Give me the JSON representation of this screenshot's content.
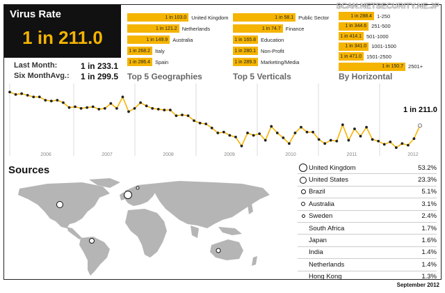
{
  "watermark": "SCAN.NETSECURITY.NE.JP",
  "virus_rate": {
    "title": "Virus Rate",
    "value": "1 in 211.0",
    "last_month_label": "Last Month:",
    "last_month_value": "1 in 233.1",
    "six_month_label": "Six MonthAvg.:",
    "six_month_value": "1 in 299.5"
  },
  "geographies": {
    "title": "Top 5 Geographies",
    "items": [
      {
        "value": "1 in 103.0",
        "label": "United Kingdom",
        "fraction": 0.98
      },
      {
        "value": "1 in 121.2",
        "label": "Netherlands",
        "fraction": 0.83
      },
      {
        "value": "1 in 149.9",
        "label": "Australia",
        "fraction": 0.68
      },
      {
        "value": "1 in 268.2",
        "label": "Italy",
        "fraction": 0.38
      },
      {
        "value": "1 in 286.4",
        "label": "Spain",
        "fraction": 0.36
      }
    ]
  },
  "verticals": {
    "title": "Top 5 Verticals",
    "items": [
      {
        "value": "1 in 58.1",
        "label": "Public Sector",
        "fraction": 0.98
      },
      {
        "value": "1 in 74.7",
        "label": "Finance",
        "fraction": 0.78
      },
      {
        "value": "1 in 165.8",
        "label": "Education",
        "fraction": 0.36
      },
      {
        "value": "1 in 280.1",
        "label": "Non-Profit",
        "fraction": 0.22
      },
      {
        "value": "1 in 289.3",
        "label": "Marketing/Media",
        "fraction": 0.22
      }
    ]
  },
  "horizontal": {
    "title": "By Horizontal",
    "items": [
      {
        "value": "1 in 288.4",
        "label": "1-250",
        "fraction": 0.52
      },
      {
        "value": "1 in 344.6",
        "label": "251-500",
        "fraction": 0.44
      },
      {
        "value": "1 in 414.1",
        "label": "501-1000",
        "fraction": 0.36
      },
      {
        "value": "1 in 341.0",
        "label": "1001-1500",
        "fraction": 0.44
      },
      {
        "value": "1 in 471.0",
        "label": "1501-2500",
        "fraction": 0.32
      },
      {
        "value": "1 in 150.7",
        "label": "2501+",
        "fraction": 0.98
      }
    ]
  },
  "chart_data": {
    "type": "line",
    "current_label": "1 in 211.0",
    "x_ticks": [
      "2006",
      "2007",
      "2008",
      "2009",
      "2010",
      "2011",
      "2012"
    ],
    "color": "#f5b400",
    "values": [
      127,
      130,
      129,
      131,
      133,
      133,
      137,
      138,
      137,
      140,
      146,
      145,
      147,
      146,
      145,
      148,
      147,
      141,
      147,
      133,
      151,
      147,
      140,
      144,
      147,
      148,
      149,
      149,
      156,
      155,
      156,
      162,
      165,
      166,
      171,
      177,
      176,
      180,
      182,
      193,
      177,
      180,
      178,
      186,
      169,
      177,
      183,
      190,
      177,
      170,
      176,
      176,
      185,
      190,
      186,
      187,
      167,
      186,
      172,
      181,
      170,
      185,
      187,
      191,
      188,
      195,
      190,
      192,
      184,
      168
    ]
  },
  "sources": {
    "title": "Sources",
    "rows": [
      {
        "name": "United Kingdom",
        "pct": "53.2%",
        "dot": 6
      },
      {
        "name": "United States",
        "pct": "23.3%",
        "dot": 5
      },
      {
        "name": "Brazil",
        "pct": "5.1%",
        "dot": 3.5
      },
      {
        "name": "Australia",
        "pct": "3.1%",
        "dot": 3
      },
      {
        "name": "Sweden",
        "pct": "2.4%",
        "dot": 2.5
      },
      {
        "name": "South Africa",
        "pct": "1.7%",
        "dot": 0
      },
      {
        "name": "Japan",
        "pct": "1.6%",
        "dot": 0
      },
      {
        "name": "India",
        "pct": "1.4%",
        "dot": 0
      },
      {
        "name": "Netherlands",
        "pct": "1.4%",
        "dot": 0
      },
      {
        "name": "Hong Kong",
        "pct": "1.3%",
        "dot": 0
      }
    ]
  },
  "footer": "September 2012"
}
